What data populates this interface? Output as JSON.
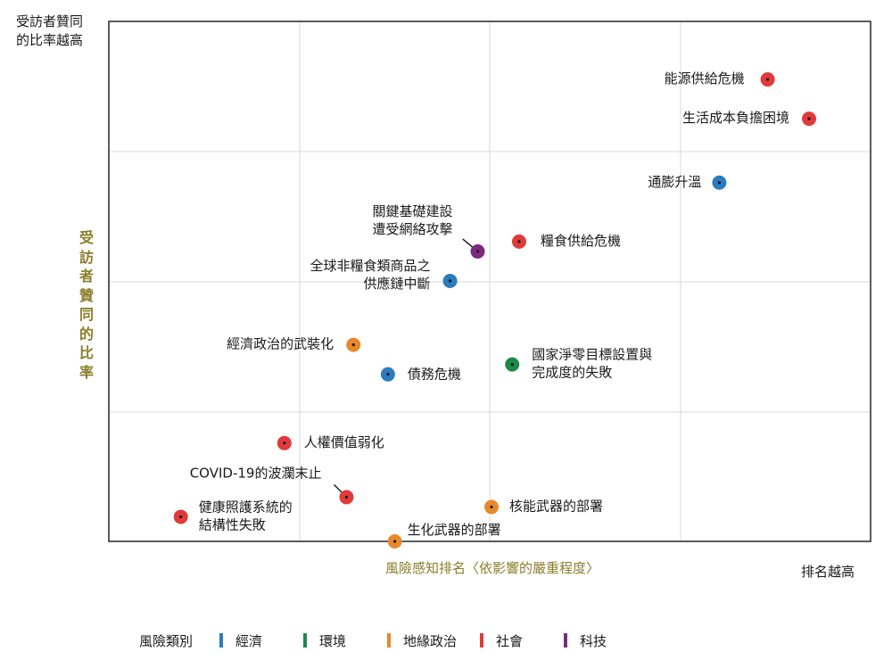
{
  "y_high_label": "受訪者贊同\n的比率越高",
  "chart_data": {
    "type": "scatter",
    "title": "",
    "xlabel": "風險感知排名〈依影響的嚴重程度〉",
    "ylabel": "受訪者贊同的比率",
    "x_high_label": "排名越高",
    "xlim": [
      0,
      100
    ],
    "ylim": [
      0,
      100
    ],
    "grid": true,
    "legend": {
      "title": "風險類別",
      "position": "bottom",
      "entries": [
        {
          "key": "economic",
          "label": "經濟",
          "color": "#2b7bbf"
        },
        {
          "key": "environmental",
          "label": "環境",
          "color": "#1e8a4a"
        },
        {
          "key": "geopolitical",
          "label": "地緣政治",
          "color": "#e8892b"
        },
        {
          "key": "societal",
          "label": "社會",
          "color": "#e03a3a"
        },
        {
          "key": "technological",
          "label": "科技",
          "color": "#7b2a80"
        }
      ]
    },
    "points": [
      {
        "label": "能源供給危機",
        "category": "societal",
        "x": 90,
        "y": 94
      },
      {
        "label": "生活成本負擔困境",
        "category": "societal",
        "x": 96,
        "y": 86
      },
      {
        "label": "通膨升溫",
        "category": "economic",
        "x": 83,
        "y": 73
      },
      {
        "label": "關鍵基礎建設\n遭受網絡攻擊",
        "category": "technological",
        "x": 48,
        "y": 59
      },
      {
        "label": "糧食供給危機",
        "category": "societal",
        "x": 54,
        "y": 61
      },
      {
        "label": "全球非糧食類商品之\n供應鏈中斷",
        "category": "economic",
        "x": 44,
        "y": 53
      },
      {
        "label": "經濟政治的武裝化",
        "category": "geopolitical",
        "x": 30,
        "y": 40
      },
      {
        "label": "國家淨零目標設置與\n完成度的失敗",
        "category": "environmental",
        "x": 53,
        "y": 36
      },
      {
        "label": "債務危機",
        "category": "economic",
        "x": 35,
        "y": 34
      },
      {
        "label": "人權價值弱化",
        "category": "societal",
        "x": 20,
        "y": 20
      },
      {
        "label": "COVID-19的波瀾末止",
        "category": "societal",
        "x": 29,
        "y": 9
      },
      {
        "label": "核能武器的部署",
        "category": "geopolitical",
        "x": 50,
        "y": 7
      },
      {
        "label": "健康照護系統的\n結構性失敗",
        "category": "societal",
        "x": 5,
        "y": 5
      },
      {
        "label": "生化武器的部署",
        "category": "geopolitical",
        "x": 36,
        "y": 0
      }
    ]
  }
}
